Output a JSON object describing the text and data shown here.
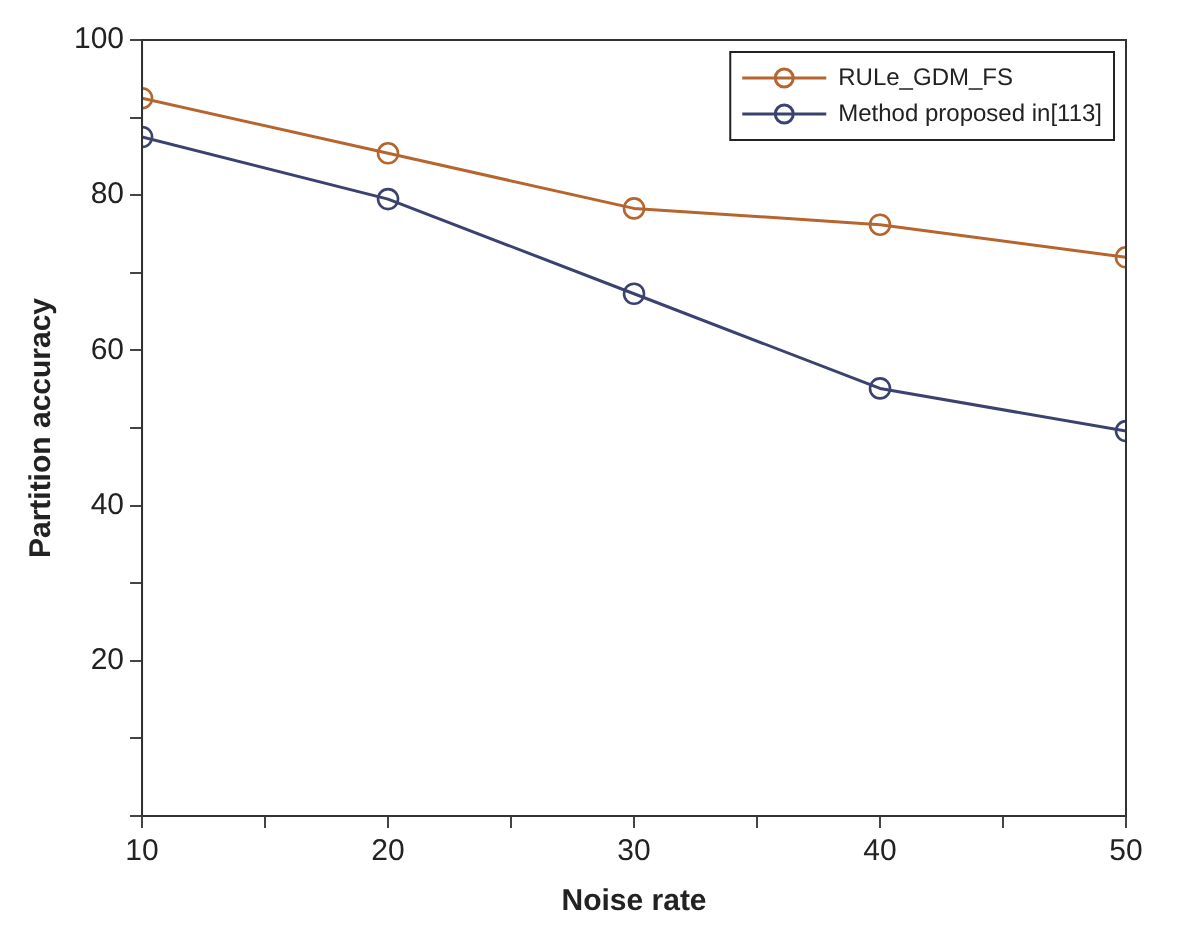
{
  "chart_data": {
    "type": "line",
    "xlabel": "Noise rate",
    "ylabel": "Partition accuracy",
    "x": [
      10,
      20,
      30,
      40,
      50
    ],
    "series": [
      {
        "name": "RULe_GDM_FS",
        "color": "#b5652d",
        "values": [
          92.5,
          85.4,
          78.3,
          76.2,
          72
        ]
      },
      {
        "name": "Method proposed in[113]",
        "color": "#3c4270",
        "values": [
          87.5,
          79.5,
          67.3,
          55.1,
          49.6
        ]
      }
    ],
    "xlim": [
      10,
      50
    ],
    "xticks": [
      10,
      {
        "value": 15,
        "label": null
      },
      20,
      {
        "value": 25,
        "label": null
      },
      30,
      {
        "value": 35,
        "label": null
      },
      40,
      {
        "value": 45,
        "label": null
      },
      50
    ],
    "ylim": [
      0,
      100
    ],
    "yticks": [
      {
        "value": 0,
        "label": null
      },
      {
        "value": 10,
        "label": null
      },
      20,
      {
        "value": 30,
        "label": null
      },
      40,
      {
        "value": 50,
        "label": null
      },
      60,
      {
        "value": 70,
        "label": null
      },
      80,
      {
        "value": 90,
        "label": null
      },
      100
    ],
    "grid": false,
    "legend": "top right",
    "marker": "circle",
    "line_style": "solid"
  }
}
